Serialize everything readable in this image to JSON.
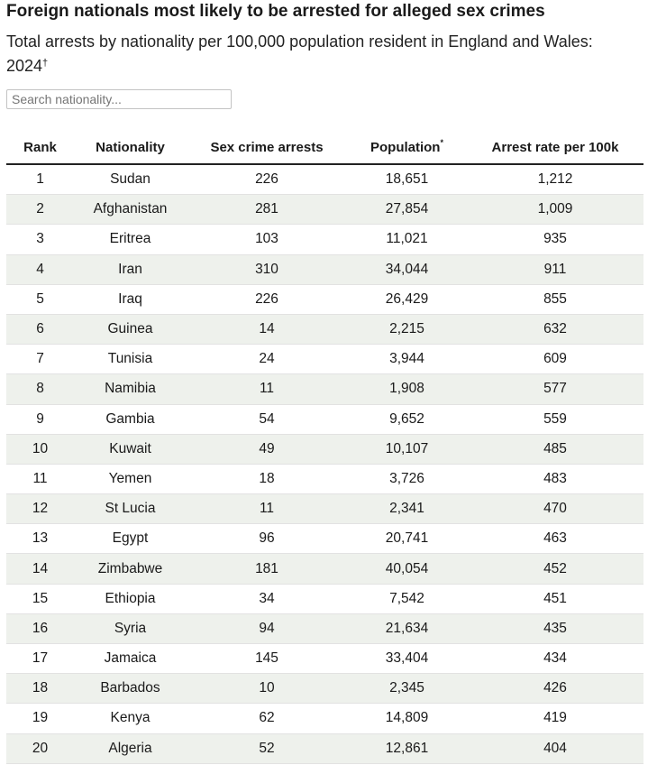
{
  "title": "Foreign nationals most likely to be arrested for alleged sex crimes",
  "subtitle": "Total arrests by nationality per 100,000 population resident in England and Wales: 2024",
  "subtitle_mark": "†",
  "search": {
    "placeholder": "Search nationality..."
  },
  "chart_data": {
    "type": "table",
    "columns": [
      "Rank",
      "Nationality",
      "Sex crime arrests",
      "Population",
      "Arrest rate per 100k"
    ],
    "population_mark": "*",
    "rows": [
      [
        "1",
        "Sudan",
        "226",
        "18,651",
        "1,212"
      ],
      [
        "2",
        "Afghanistan",
        "281",
        "27,854",
        "1,009"
      ],
      [
        "3",
        "Eritrea",
        "103",
        "11,021",
        "935"
      ],
      [
        "4",
        "Iran",
        "310",
        "34,044",
        "911"
      ],
      [
        "5",
        "Iraq",
        "226",
        "26,429",
        "855"
      ],
      [
        "6",
        "Guinea",
        "14",
        "2,215",
        "632"
      ],
      [
        "7",
        "Tunisia",
        "24",
        "3,944",
        "609"
      ],
      [
        "8",
        "Namibia",
        "11",
        "1,908",
        "577"
      ],
      [
        "9",
        "Gambia",
        "54",
        "9,652",
        "559"
      ],
      [
        "10",
        "Kuwait",
        "49",
        "10,107",
        "485"
      ],
      [
        "11",
        "Yemen",
        "18",
        "3,726",
        "483"
      ],
      [
        "12",
        "St Lucia",
        "11",
        "2,341",
        "470"
      ],
      [
        "13",
        "Egypt",
        "96",
        "20,741",
        "463"
      ],
      [
        "14",
        "Zimbabwe",
        "181",
        "40,054",
        "452"
      ],
      [
        "15",
        "Ethiopia",
        "34",
        "7,542",
        "451"
      ],
      [
        "16",
        "Syria",
        "94",
        "21,634",
        "435"
      ],
      [
        "17",
        "Jamaica",
        "145",
        "33,404",
        "434"
      ],
      [
        "18",
        "Barbados",
        "10",
        "2,345",
        "426"
      ],
      [
        "19",
        "Kenya",
        "62",
        "14,809",
        "419"
      ],
      [
        "20",
        "Algeria",
        "52",
        "12,861",
        "404"
      ]
    ]
  }
}
